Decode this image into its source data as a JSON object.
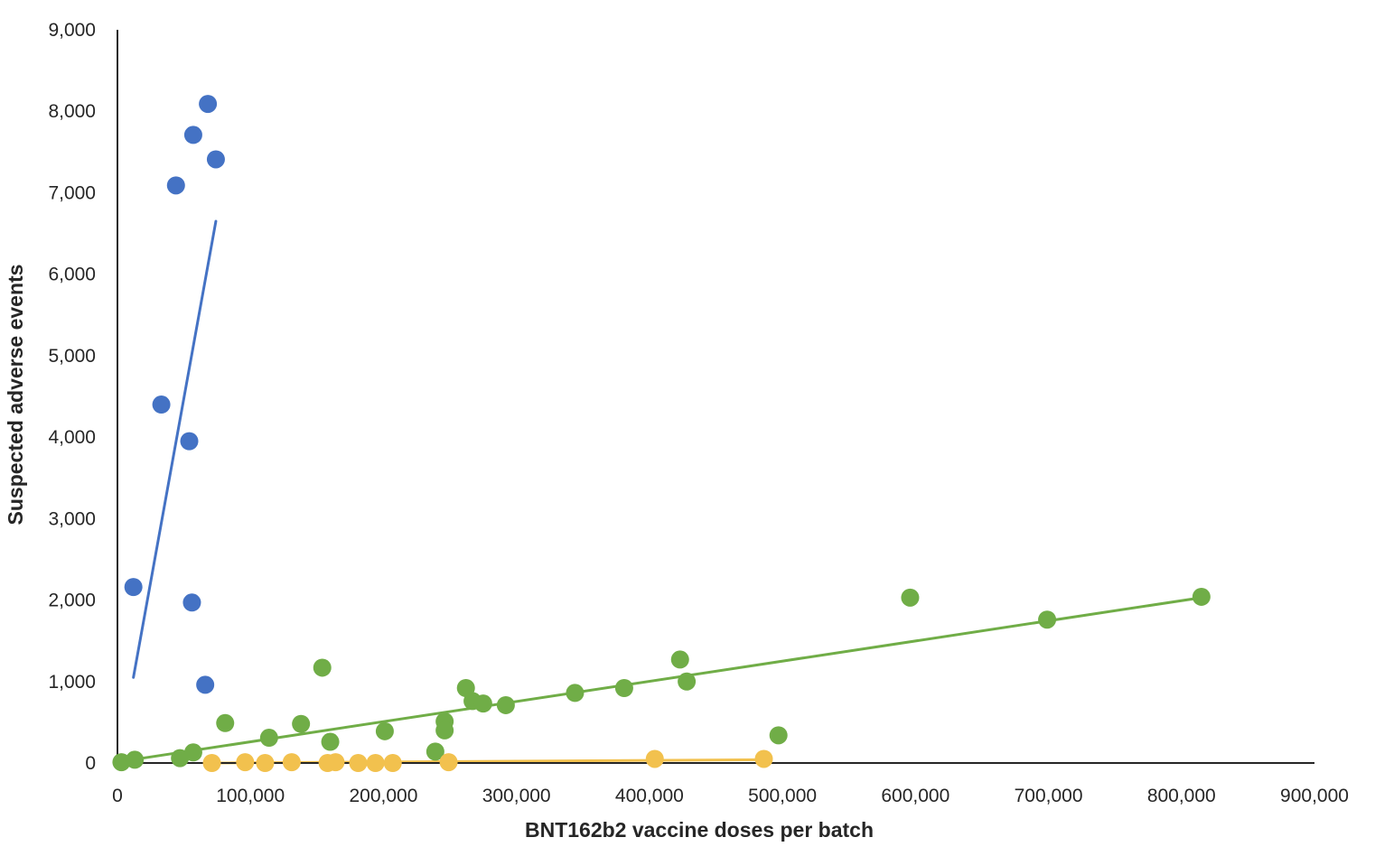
{
  "chart_data": {
    "type": "scatter",
    "xlabel": "BNT162b2 vaccine doses per batch",
    "ylabel": "Suspected adverse events",
    "xlim": [
      0,
      900000
    ],
    "ylim": [
      0,
      9000
    ],
    "x_ticks": [
      0,
      100000,
      200000,
      300000,
      400000,
      500000,
      600000,
      700000,
      800000,
      900000
    ],
    "x_tick_labels": [
      "0",
      "100,000",
      "200,000",
      "300,000",
      "400,000",
      "500,000",
      "600,000",
      "700,000",
      "800,000",
      "900,000"
    ],
    "y_ticks": [
      0,
      1000,
      2000,
      3000,
      4000,
      5000,
      6000,
      7000,
      8000,
      9000
    ],
    "y_tick_labels": [
      "0",
      "1,000",
      "2,000",
      "3,000",
      "4,000",
      "5,000",
      "6,000",
      "7,000",
      "8,000",
      "9,000"
    ],
    "grid": false,
    "legend": "none",
    "series": [
      {
        "color": "#4472c4",
        "points": [
          [
            12000,
            2160
          ],
          [
            33000,
            4400
          ],
          [
            44000,
            7090
          ],
          [
            54000,
            3950
          ],
          [
            56000,
            1970
          ],
          [
            57000,
            7710
          ],
          [
            66000,
            960
          ],
          [
            68000,
            8090
          ],
          [
            74000,
            7410
          ]
        ],
        "trendline": [
          [
            12000,
            1050
          ],
          [
            74000,
            6650
          ]
        ]
      },
      {
        "color": "#70ad47",
        "points": [
          [
            3000,
            10
          ],
          [
            13000,
            40
          ],
          [
            47000,
            60
          ],
          [
            57000,
            130
          ],
          [
            81000,
            490
          ],
          [
            114000,
            310
          ],
          [
            138000,
            480
          ],
          [
            154000,
            1170
          ],
          [
            160000,
            260
          ],
          [
            201000,
            390
          ],
          [
            239000,
            140
          ],
          [
            246000,
            510
          ],
          [
            246000,
            400
          ],
          [
            262000,
            920
          ],
          [
            267000,
            760
          ],
          [
            275000,
            730
          ],
          [
            292000,
            710
          ],
          [
            344000,
            860
          ],
          [
            381000,
            920
          ],
          [
            423000,
            1270
          ],
          [
            428000,
            1000
          ],
          [
            497000,
            340
          ],
          [
            596000,
            2030
          ],
          [
            699000,
            1760
          ],
          [
            815000,
            2040
          ]
        ],
        "trendline": [
          [
            3000,
            20
          ],
          [
            815000,
            2030
          ]
        ]
      },
      {
        "color": "#f2c14e",
        "points": [
          [
            71000,
            0
          ],
          [
            96000,
            10
          ],
          [
            111000,
            0
          ],
          [
            131000,
            10
          ],
          [
            158000,
            0
          ],
          [
            164000,
            10
          ],
          [
            181000,
            0
          ],
          [
            194000,
            0
          ],
          [
            207000,
            0
          ],
          [
            249000,
            10
          ],
          [
            404000,
            50
          ],
          [
            486000,
            50
          ]
        ],
        "trendline": [
          [
            71000,
            0
          ],
          [
            486000,
            40
          ]
        ]
      }
    ]
  }
}
